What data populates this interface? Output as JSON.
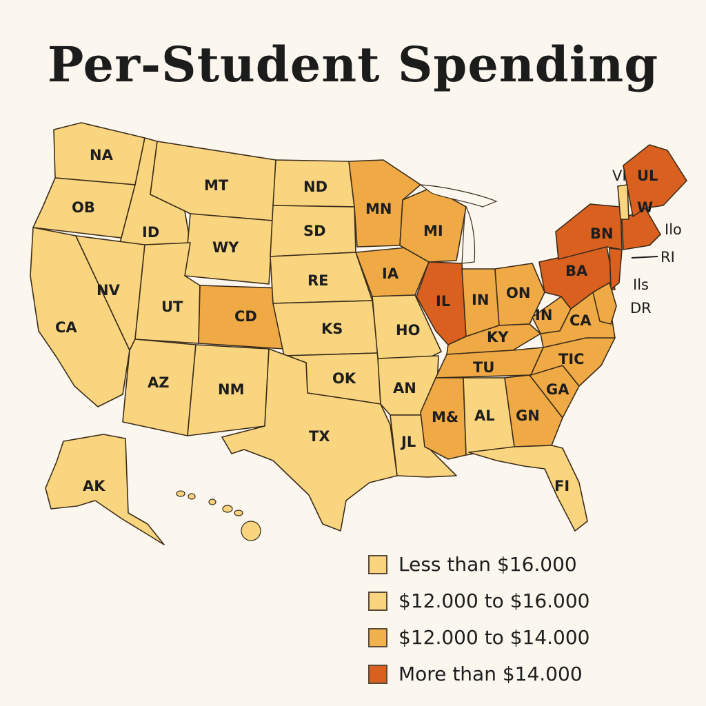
{
  "title": "Per-Student Spending",
  "colors": {
    "background": "#fbf6ee",
    "tier1": "#fad57f",
    "tier2": "#f7c66a",
    "tier3": "#f0aa45",
    "tier4": "#d9601e",
    "border": "#3a2c1a"
  },
  "states": [
    {
      "code": "NA",
      "tier": 1
    },
    {
      "code": "OB",
      "tier": 1
    },
    {
      "code": "CA",
      "tier": 1
    },
    {
      "code": "ID",
      "tier": 1
    },
    {
      "code": "NV",
      "tier": 1
    },
    {
      "code": "MT",
      "tier": 1
    },
    {
      "code": "WY",
      "tier": 1
    },
    {
      "code": "UT",
      "tier": 1
    },
    {
      "code": "AZ",
      "tier": 1
    },
    {
      "code": "CD",
      "tier": 3
    },
    {
      "code": "NM",
      "tier": 1
    },
    {
      "code": "ND",
      "tier": 1
    },
    {
      "code": "SD",
      "tier": 1
    },
    {
      "code": "RE",
      "tier": 1
    },
    {
      "code": "KS",
      "tier": 1
    },
    {
      "code": "OK",
      "tier": 1
    },
    {
      "code": "TX",
      "tier": 1
    },
    {
      "code": "MN",
      "tier": 3
    },
    {
      "code": "IA",
      "tier": 3
    },
    {
      "code": "HO",
      "tier": 1
    },
    {
      "code": "AN",
      "tier": 1
    },
    {
      "code": "JL",
      "tier": 1
    },
    {
      "code": "MI",
      "tier": 3
    },
    {
      "code": "IL",
      "tier": 4
    },
    {
      "code": "IN",
      "tier": 3
    },
    {
      "code": "ON",
      "tier": 3
    },
    {
      "code": "KY",
      "tier": 3
    },
    {
      "code": "TU",
      "tier": 3
    },
    {
      "code": "M&",
      "tier": 3
    },
    {
      "code": "AL",
      "tier": 1
    },
    {
      "code": "GN",
      "tier": 3
    },
    {
      "code": "GA",
      "tier": 3
    },
    {
      "code": "TIC",
      "tier": 3
    },
    {
      "code": "FI",
      "tier": 1
    },
    {
      "code": "IN",
      "tier": 3
    },
    {
      "code": "CA",
      "tier": 3
    },
    {
      "code": "BA",
      "tier": 4
    },
    {
      "code": "BN",
      "tier": 4
    },
    {
      "code": "W",
      "tier": 4
    },
    {
      "code": "UL",
      "tier": 4
    },
    {
      "code": "AK",
      "tier": 1
    }
  ],
  "outer_labels": [
    "VI",
    "Ilo",
    "RI",
    "Ils",
    "DR"
  ],
  "legend": [
    {
      "label": "Less than $16.000",
      "color": "#fad57f"
    },
    {
      "label": "$12.000 to $16.000",
      "color": "#fad57f"
    },
    {
      "label": "$12.000 to $14.000",
      "color": "#f0b24c"
    },
    {
      "label": "More than $14.000",
      "color": "#d9601e"
    }
  ]
}
